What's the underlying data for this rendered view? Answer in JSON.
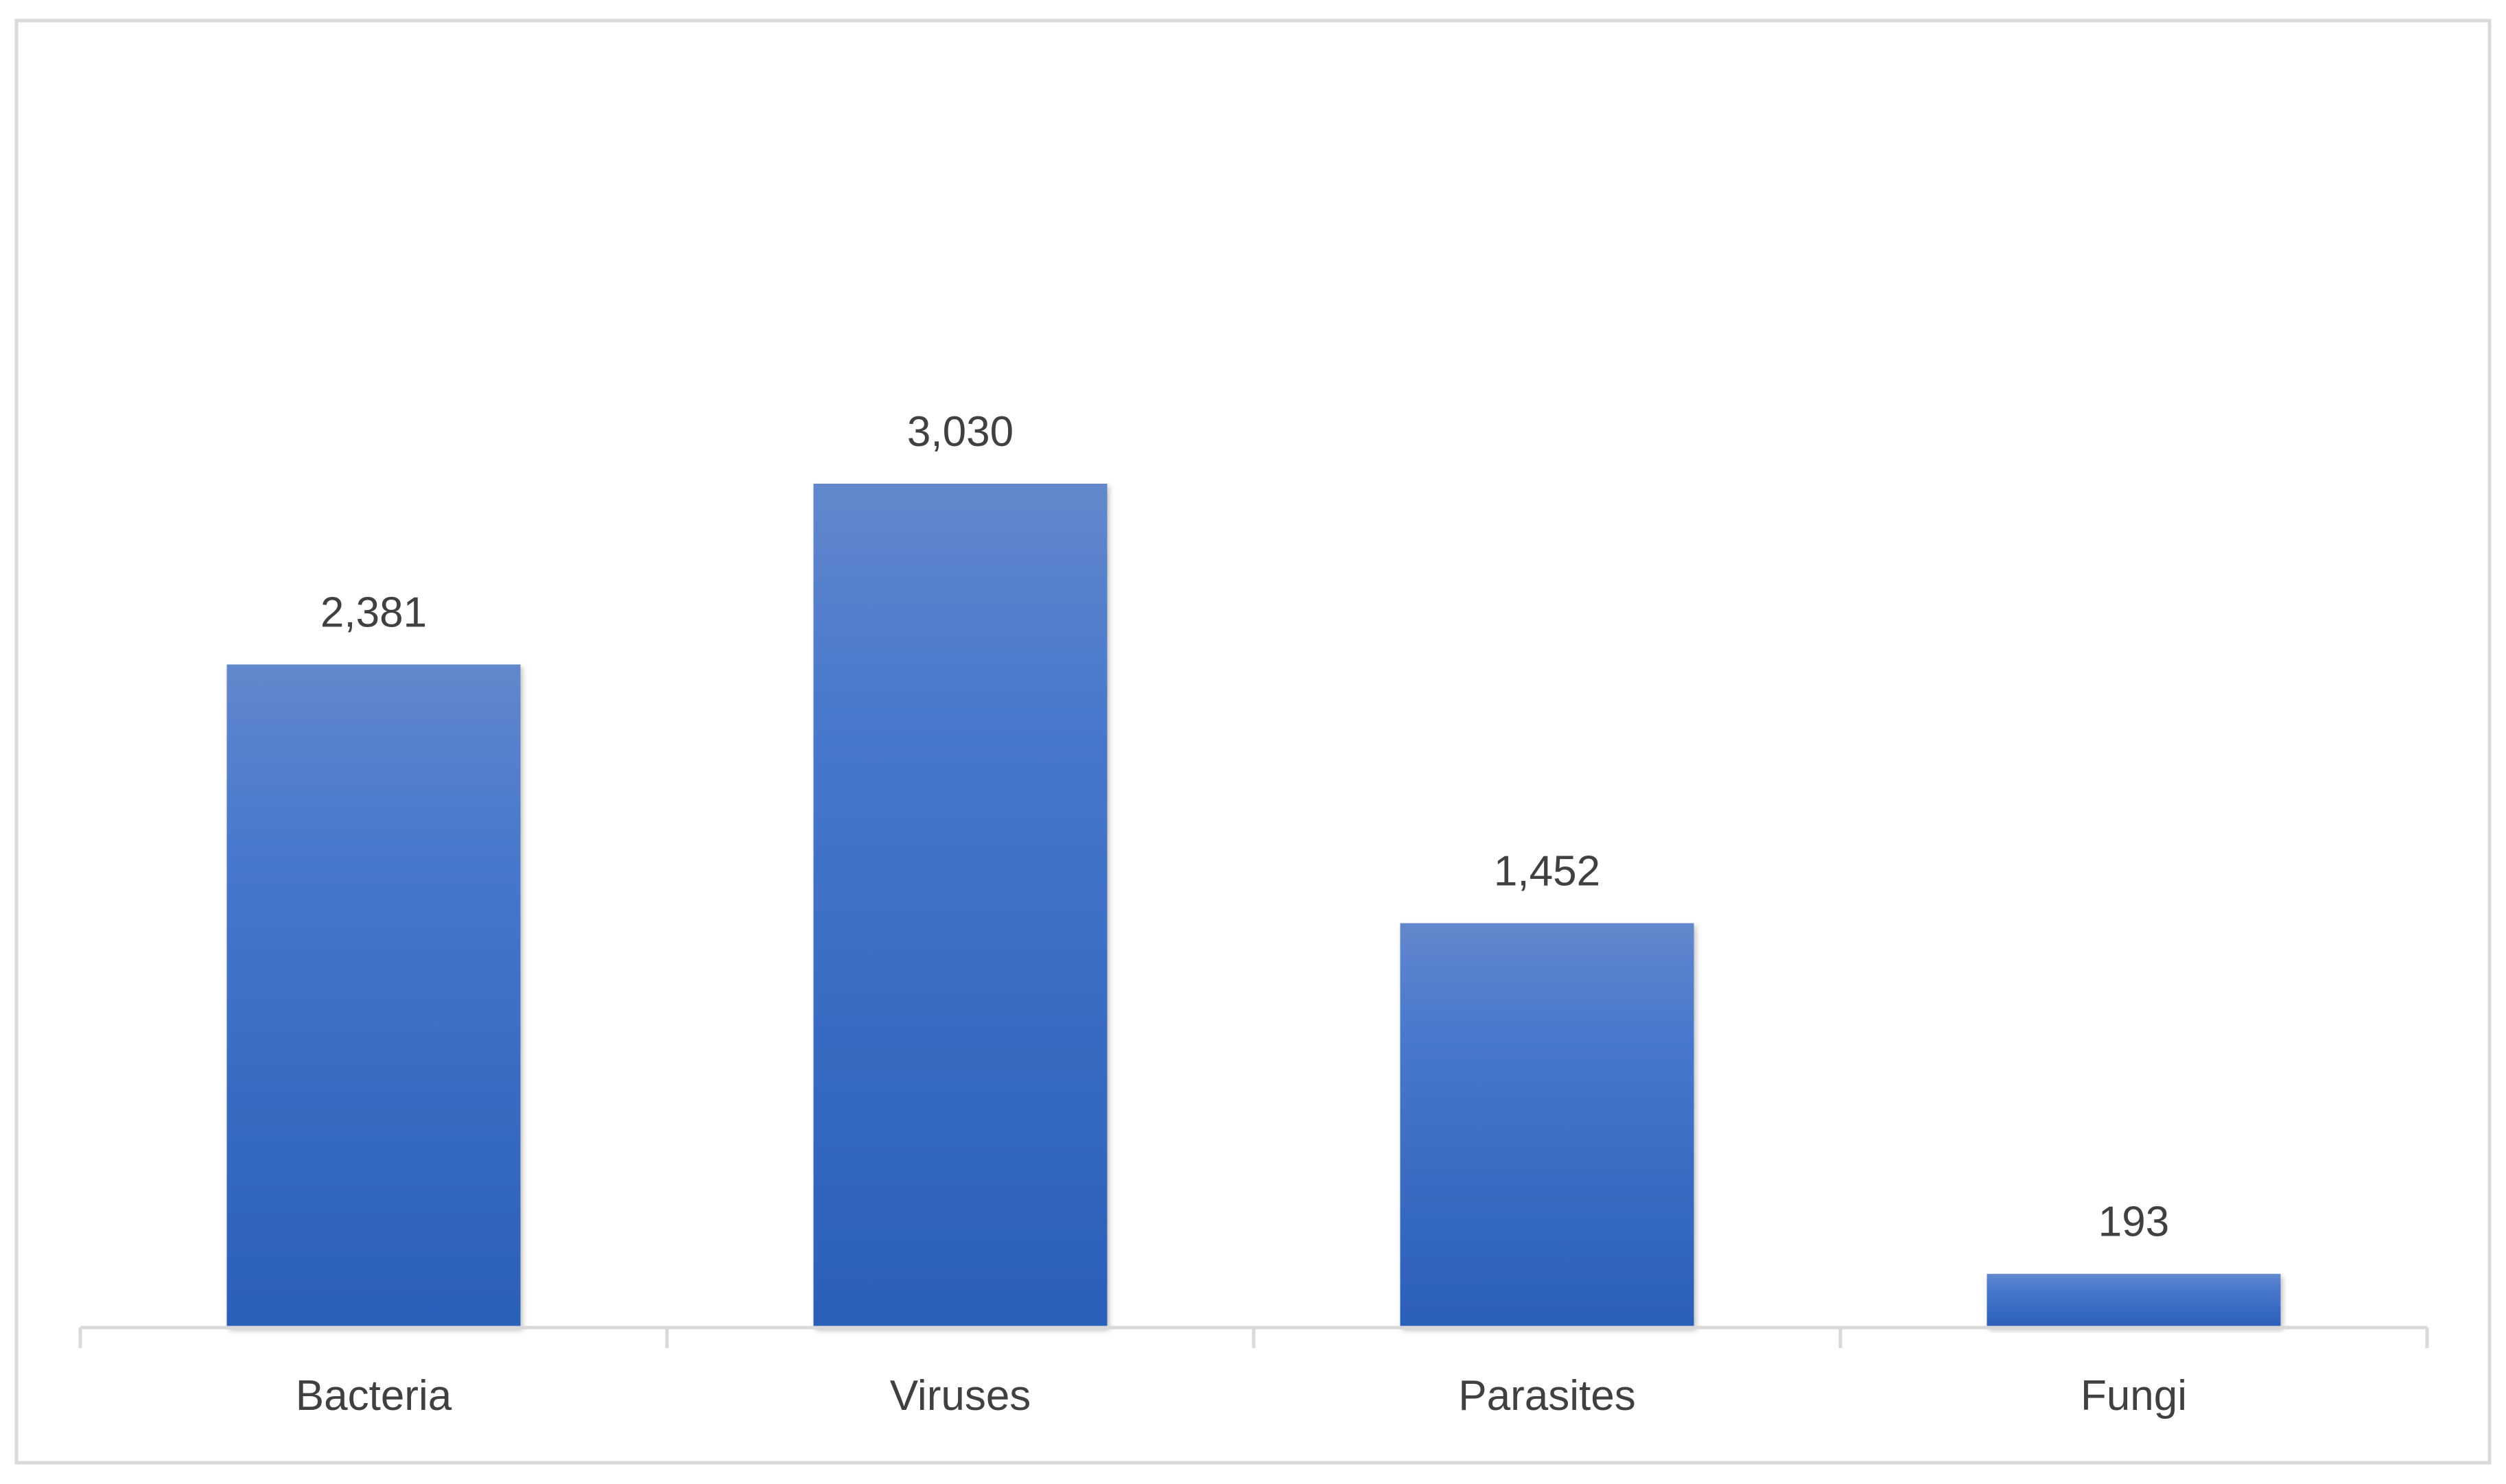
{
  "chart_data": {
    "type": "bar",
    "categories": [
      "Bacteria",
      "Viruses",
      "Parasites",
      "Fungi"
    ],
    "values": [
      2381,
      3030,
      1452,
      193
    ],
    "value_labels": [
      "2,381",
      "3,030",
      "1,452",
      "193"
    ],
    "title": "",
    "xlabel": "",
    "ylabel": "",
    "ylim": [
      0,
      3700
    ],
    "grid": false,
    "legend": "none",
    "y_axis_visible": false
  },
  "colors": {
    "bar_top": "#6287cc",
    "bar_bottom": "#2b5fba",
    "text": "#404040",
    "axis": "#d9d9d9",
    "border": "#d9d9d9",
    "background": "#ffffff"
  }
}
